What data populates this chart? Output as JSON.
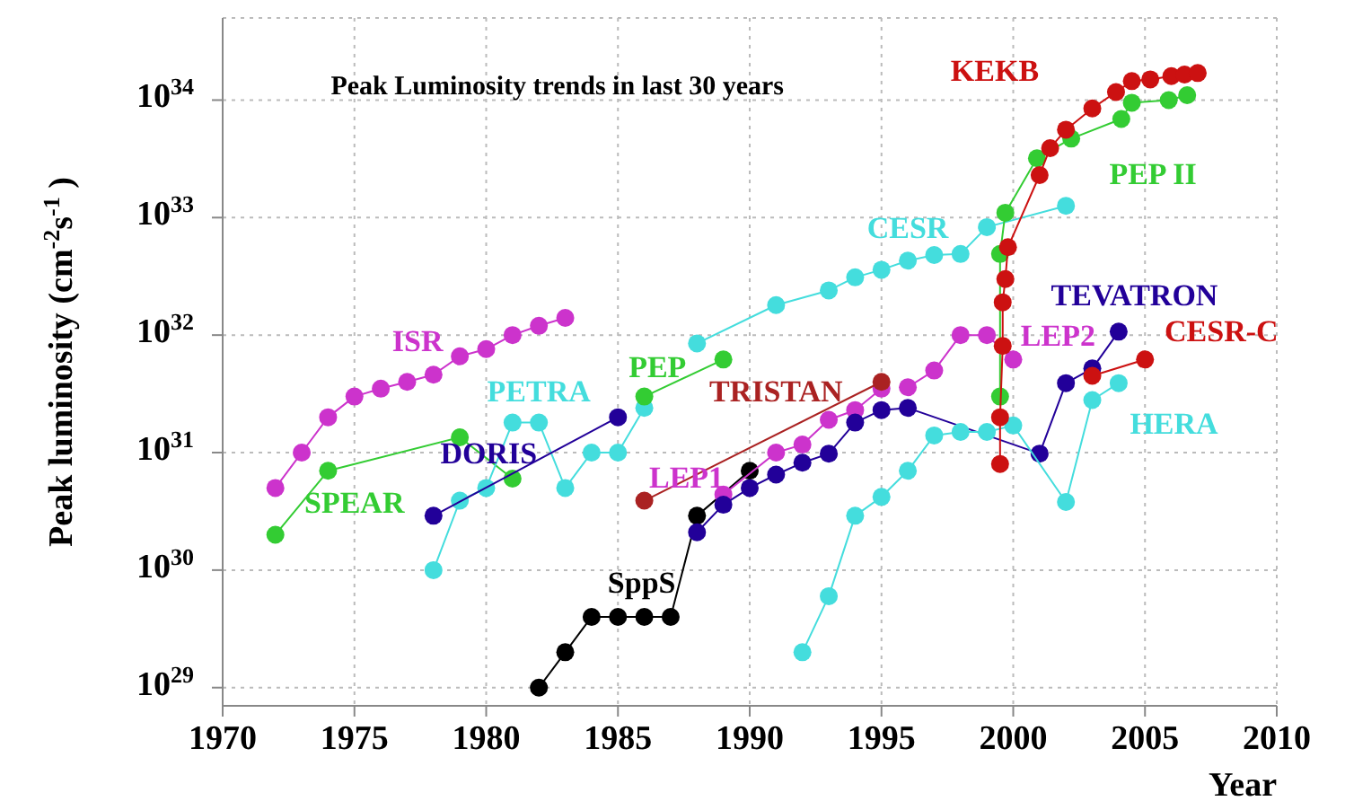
{
  "chart_data": {
    "type": "line",
    "title": "Peak Luminosity trends in last 30 years",
    "xlabel": "Year",
    "ylabel": "Peak luminosity (cm$^{-2}$s$^{-1}$ )",
    "log": "y",
    "grid": true,
    "marker": "circle",
    "line_style": "solid",
    "xlim": [
      1970,
      2010
    ],
    "xticks": [
      1970,
      1975,
      1980,
      1985,
      1990,
      1995,
      2000,
      2005,
      2010
    ],
    "ylim": [
      7e+28,
      5e+34
    ],
    "yticks": [
      {
        "value": 1e+29,
        "label": "10$^{29}$"
      },
      {
        "value": 1e+30,
        "label": "10$^{30}$"
      },
      {
        "value": 1e+31,
        "label": "10$^{31}$"
      },
      {
        "value": 1e+32,
        "label": "10$^{32}$"
      },
      {
        "value": 1e+33,
        "label": "10$^{33}$"
      },
      {
        "value": 1e+34,
        "label": "10$^{34}$"
      }
    ],
    "series": [
      {
        "name": "ISR",
        "color": "#cc33cc",
        "x": [
          1972,
          1973,
          1974,
          1975,
          1976,
          1977,
          1978,
          1979,
          1980,
          1981,
          1982,
          1983
        ],
        "values": [
          5e+30,
          1e+31,
          2e+31,
          3e+31,
          3.5e+31,
          4e+31,
          4.6e+31,
          6.6e+31,
          7.6e+31,
          1e+32,
          1.2e+32,
          1.4e+32
        ]
      },
      {
        "name": "SPEAR",
        "color": "#33cc33",
        "x": [
          1972,
          1974,
          1979,
          1981
        ],
        "values": [
          2e+30,
          7e+30,
          1.35e+31,
          6e+30
        ]
      },
      {
        "name": "PETRA",
        "color": "#44dddd",
        "x": [
          1978,
          1979,
          1980,
          1981,
          1982,
          1983,
          1984,
          1985,
          1986
        ],
        "values": [
          1e+30,
          3.9e+30,
          5e+30,
          1.8e+31,
          1.8e+31,
          5e+30,
          1e+31,
          1e+31,
          2.4e+31
        ]
      },
      {
        "name": "DORIS",
        "color": "#220099",
        "x": [
          1978,
          1985
        ],
        "values": [
          2.9e+30,
          2e+31
        ]
      },
      {
        "name": "PEP",
        "color": "#33cc33",
        "x": [
          1986,
          1989
        ],
        "values": [
          3e+31,
          6.2e+31
        ]
      },
      {
        "name": "CESR",
        "color": "#44dddd",
        "x": [
          1988,
          1991,
          1993,
          1994,
          1995,
          1996,
          1997,
          1998,
          1999,
          2002
        ],
        "values": [
          8.5e+31,
          1.8e+32,
          2.4e+32,
          3.1e+32,
          3.6e+32,
          4.3e+32,
          4.8e+32,
          4.9e+32,
          8.3e+32,
          1.26e+33
        ]
      },
      {
        "name": "SppS",
        "color": "#000000",
        "x": [
          1982,
          1983,
          1984,
          1985,
          1986,
          1987,
          1988,
          1990
        ],
        "values": [
          1e+29,
          2e+29,
          4e+29,
          4e+29,
          4e+29,
          4e+29,
          2.9e+30,
          7e+30
        ]
      },
      {
        "name": "LEP1",
        "color": "#cc33cc",
        "x": [
          1989,
          1991,
          1992,
          1993,
          1994,
          1995
        ],
        "values": [
          4.4e+30,
          1e+31,
          1.17e+31,
          1.9e+31,
          2.3e+31,
          3.5e+31
        ]
      },
      {
        "name": "LEP2",
        "color": "#cc33cc",
        "x": [
          1996,
          1997,
          1998,
          1999,
          2000
        ],
        "values": [
          3.6e+31,
          5e+31,
          1e+32,
          1e+32,
          6.2e+31
        ]
      },
      {
        "name": "TEVATRON",
        "color": "#220099",
        "x": [
          1988,
          1989,
          1990,
          1991,
          1992,
          1993,
          1994,
          1995,
          1996,
          2001,
          2002,
          2003,
          2004
        ],
        "values": [
          2.1e+30,
          3.6e+30,
          5e+30,
          6.5e+30,
          8.2e+30,
          9.8e+30,
          1.8e+31,
          2.3e+31,
          2.4e+31,
          9.8e+30,
          3.9e+31,
          5.2e+31,
          1.07e+32
        ]
      },
      {
        "name": "HERA",
        "color": "#44dddd",
        "x": [
          1992,
          1993,
          1994,
          1995,
          1996,
          1997,
          1998,
          1999,
          2000,
          2002,
          2003,
          2004
        ],
        "values": [
          2e+29,
          6e+29,
          2.9e+30,
          4.2e+30,
          7e+30,
          1.4e+31,
          1.5e+31,
          1.5e+31,
          1.7e+31,
          3.8e+30,
          2.8e+31,
          3.9e+31
        ]
      },
      {
        "name": "TRISTAN",
        "color": "#aa2222",
        "x": [
          1986,
          1995
        ],
        "values": [
          3.9e+30,
          4e+31
        ]
      },
      {
        "name": "PEP II",
        "color": "#33cc33",
        "x": [
          1999.5,
          1999.5,
          1999.7,
          2000.9,
          2002.2,
          2004.1,
          2004.5,
          2005.9,
          2006.6
        ],
        "values": [
          3e+31,
          4.9e+32,
          1.1e+33,
          3.2e+33,
          4.7e+33,
          6.9e+33,
          9.5e+33,
          1e+34,
          1.1e+34
        ]
      },
      {
        "name": "CESR-C",
        "color": "#cc1111",
        "x": [
          2003,
          2005
        ],
        "values": [
          4.5e+31,
          6.2e+31
        ]
      },
      {
        "name": "KEKB",
        "color": "#cc1111",
        "x": [
          1999.5,
          1999.5,
          1999.6,
          1999.6,
          1999.7,
          1999.8,
          2001,
          2001.4,
          2002,
          2003,
          2003.9,
          2004.5,
          2005.2,
          2006,
          2006.5,
          2007
        ],
        "values": [
          8e+30,
          2e+31,
          8.1e+31,
          1.9e+32,
          3e+32,
          5.6e+32,
          2.3e+33,
          3.9e+33,
          5.6e+33,
          8.5e+33,
          1.17e+34,
          1.45e+34,
          1.5e+34,
          1.6e+34,
          1.65e+34,
          1.7e+34
        ]
      }
    ]
  }
}
